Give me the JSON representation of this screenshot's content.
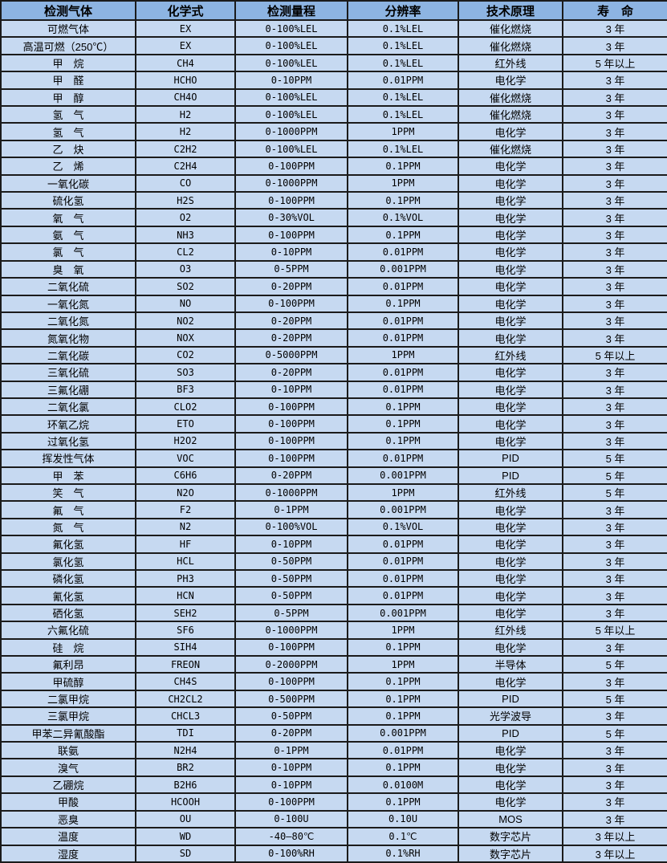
{
  "colors": {
    "header_bg": "#8db4e2",
    "row_bg": "#c6d9f1",
    "border": "#1b1b1b",
    "text": "#000000"
  },
  "table": {
    "columns": [
      {
        "key": "gas",
        "label": "检测气体"
      },
      {
        "key": "formula",
        "label": "化学式"
      },
      {
        "key": "range",
        "label": "检测量程"
      },
      {
        "key": "resolution",
        "label": "分辨率"
      },
      {
        "key": "principle",
        "label": "技术原理"
      },
      {
        "key": "lifespan",
        "label": "寿　命"
      }
    ],
    "rows": [
      [
        "可燃气体",
        "EX",
        "0-100%LEL",
        "0.1%LEL",
        "催化燃烧",
        "3 年"
      ],
      [
        "高温可燃（250℃）",
        "EX",
        "0-100%LEL",
        "0.1%LEL",
        "催化燃烧",
        "3 年"
      ],
      [
        "甲　烷",
        "CH4",
        "0-100%LEL",
        "0.1%LEL",
        "红外线",
        "5 年以上"
      ],
      [
        "甲　醛",
        "HCHO",
        "0-10PPM",
        "0.01PPM",
        "电化学",
        "3 年"
      ],
      [
        "甲　醇",
        "CH4O",
        "0-100%LEL",
        "0.1%LEL",
        "催化燃烧",
        "3 年"
      ],
      [
        "氢　气",
        "H2",
        "0-100%LEL",
        "0.1%LEL",
        "催化燃烧",
        "3 年"
      ],
      [
        "氢　气",
        "H2",
        "0-1000PPM",
        "1PPM",
        "电化学",
        "3 年"
      ],
      [
        "乙　炔",
        "C2H2",
        "0-100%LEL",
        "0.1%LEL",
        "催化燃烧",
        "3 年"
      ],
      [
        "乙　烯",
        "C2H4",
        "0-100PPM",
        "0.1PPM",
        "电化学",
        "3 年"
      ],
      [
        "一氧化碳",
        "CO",
        "0-1000PPM",
        "1PPM",
        "电化学",
        "3 年"
      ],
      [
        "硫化氢",
        "H2S",
        "0-100PPM",
        "0.1PPM",
        "电化学",
        "3 年"
      ],
      [
        "氧　气",
        "O2",
        "0-30%VOL",
        "0.1%VOL",
        "电化学",
        "3 年"
      ],
      [
        "氨　气",
        "NH3",
        "0-100PPM",
        "0.1PPM",
        "电化学",
        "3 年"
      ],
      [
        "氯　气",
        "CL2",
        "0-10PPM",
        "0.01PPM",
        "电化学",
        "3 年"
      ],
      [
        "臭　氧",
        "O3",
        "0-5PPM",
        "0.001PPM",
        "电化学",
        "3 年"
      ],
      [
        "二氧化硫",
        "SO2",
        "0-20PPM",
        "0.01PPM",
        "电化学",
        "3 年"
      ],
      [
        "一氧化氮",
        "NO",
        "0-100PPM",
        "0.1PPM",
        "电化学",
        "3 年"
      ],
      [
        "二氧化氮",
        "NO2",
        "0-20PPM",
        "0.01PPM",
        "电化学",
        "3 年"
      ],
      [
        "氮氧化物",
        "NOX",
        "0-20PPM",
        "0.01PPM",
        "电化学",
        "3 年"
      ],
      [
        "二氧化碳",
        "CO2",
        "0-5000PPM",
        "1PPM",
        "红外线",
        "5 年以上"
      ],
      [
        "三氧化硫",
        "SO3",
        "0-20PPM",
        "0.01PPM",
        "电化学",
        "3 年"
      ],
      [
        "三氟化硼",
        "BF3",
        "0-10PPM",
        "0.01PPM",
        "电化学",
        "3 年"
      ],
      [
        "二氧化氯",
        "CLO2",
        "0-100PPM",
        "0.1PPM",
        "电化学",
        "3 年"
      ],
      [
        "环氧乙烷",
        "ETO",
        "0-100PPM",
        "0.1PPM",
        "电化学",
        "3 年"
      ],
      [
        "过氧化氢",
        "H2O2",
        "0-100PPM",
        "0.1PPM",
        "电化学",
        "3 年"
      ],
      [
        "挥发性气体",
        "VOC",
        "0-100PPM",
        "0.01PPM",
        "PID",
        "5 年"
      ],
      [
        "甲　苯",
        "C6H6",
        "0-20PPM",
        "0.001PPM",
        "PID",
        "5 年"
      ],
      [
        "笑　气",
        "N2O",
        "0-1000PPM",
        "1PPM",
        "红外线",
        "5 年"
      ],
      [
        "氟　气",
        "F2",
        "0-1PPM",
        "0.001PPM",
        "电化学",
        "3 年"
      ],
      [
        "氮　气",
        "N2",
        "0-100%VOL",
        "0.1%VOL",
        "电化学",
        "3 年"
      ],
      [
        "氟化氢",
        "HF",
        "0-10PPM",
        "0.01PPM",
        "电化学",
        "3 年"
      ],
      [
        "氯化氢",
        "HCL",
        "0-50PPM",
        "0.01PPM",
        "电化学",
        "3 年"
      ],
      [
        "磷化氢",
        "PH3",
        "0-50PPM",
        "0.01PPM",
        "电化学",
        "3 年"
      ],
      [
        "氰化氢",
        "HCN",
        "0-50PPM",
        "0.01PPM",
        "电化学",
        "3 年"
      ],
      [
        "硒化氢",
        "SEH2",
        "0-5PPM",
        "0.001PPM",
        "电化学",
        "3 年"
      ],
      [
        "六氟化硫",
        "SF6",
        "0-1000PPM",
        "1PPM",
        "红外线",
        "5 年以上"
      ],
      [
        "硅　烷",
        "SIH4",
        "0-100PPM",
        "0.1PPM",
        "电化学",
        "3 年"
      ],
      [
        "氟利昂",
        "FREON",
        "0-2000PPM",
        "1PPM",
        "半导体",
        "5 年"
      ],
      [
        "甲硫醇",
        "CH4S",
        "0-100PPM",
        "0.1PPM",
        "电化学",
        "3 年"
      ],
      [
        "二氯甲烷",
        "CH2CL2",
        "0-500PPM",
        "0.1PPM",
        "PID",
        "5 年"
      ],
      [
        "三氯甲烷",
        "CHCL3",
        "0-50PPM",
        "0.1PPM",
        "光学波导",
        "3 年"
      ],
      [
        "甲苯二异氰酸酯",
        "TDI",
        "0-20PPM",
        "0.001PPM",
        "PID",
        "5 年"
      ],
      [
        "联氨",
        "N2H4",
        "0-1PPM",
        "0.01PPM",
        "电化学",
        "3 年"
      ],
      [
        "溴气",
        "BR2",
        "0-10PPM",
        "0.1PPM",
        "电化学",
        "3 年"
      ],
      [
        "乙硼烷",
        "B2H6",
        "0-10PPM",
        "0.0100M",
        "电化学",
        "3 年"
      ],
      [
        "甲酸",
        "HCOOH",
        "0-100PPM",
        "0.1PPM",
        "电化学",
        "3 年"
      ],
      [
        "恶臭",
        "OU",
        "0-100U",
        "0.10U",
        "MOS",
        "3 年"
      ],
      [
        "温度",
        "WD",
        "-40—80℃",
        "0.1℃",
        "数字芯片",
        "3 年以上"
      ],
      [
        "湿度",
        "SD",
        "0-100%RH",
        "0.1%RH",
        "数字芯片",
        "3 年以上"
      ]
    ]
  }
}
